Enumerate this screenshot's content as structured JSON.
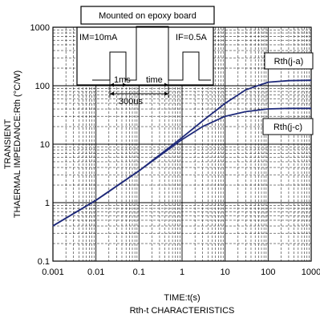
{
  "chart_data": {
    "type": "line",
    "title": "Rth-t CHARACTERISTICS",
    "xlabel": "TIME:t(s)",
    "ylabel_line1": "TRANSIENT",
    "ylabel_line2": "THAERMAL IMPEDANCE:Rth (°C/W)",
    "x_scale": "log",
    "y_scale": "log",
    "xlim": [
      0.001,
      1000
    ],
    "ylim": [
      0.1,
      1000
    ],
    "grid": true,
    "x_ticks": [
      {
        "value": 0.001,
        "label": "0.001"
      },
      {
        "value": 0.01,
        "label": "0.01"
      },
      {
        "value": 0.1,
        "label": "0.1"
      },
      {
        "value": 1,
        "label": "1"
      },
      {
        "value": 10,
        "label": "10"
      },
      {
        "value": 100,
        "label": "100"
      },
      {
        "value": 1000,
        "label": "1000"
      }
    ],
    "y_ticks": [
      {
        "value": 0.1,
        "label": "0.1"
      },
      {
        "value": 1,
        "label": "1"
      },
      {
        "value": 10,
        "label": "10"
      },
      {
        "value": 100,
        "label": "100"
      },
      {
        "value": 1000,
        "label": "1000"
      }
    ],
    "series": [
      {
        "name": "Rth(j-a)",
        "color": "#1f2a7a",
        "x": [
          0.001,
          0.01,
          0.1,
          1,
          3,
          10,
          30,
          100,
          300,
          1000
        ],
        "y": [
          0.4,
          1.1,
          3.5,
          13,
          25,
          50,
          85,
          115,
          122,
          124
        ]
      },
      {
        "name": "Rth(j-c)",
        "color": "#1f2a7a",
        "x": [
          0.001,
          0.01,
          0.1,
          1,
          3,
          10,
          30,
          100,
          300,
          1000
        ],
        "y": [
          0.4,
          1.1,
          3.5,
          12,
          20,
          30,
          36,
          40,
          41,
          41
        ]
      }
    ],
    "inset": {
      "title": "Mounted on epoxy board",
      "im_label": "IM=10mA",
      "if_label": "IF=0.5A",
      "ms_label": "1ms",
      "time_label": "time",
      "us_label": "300us"
    }
  }
}
